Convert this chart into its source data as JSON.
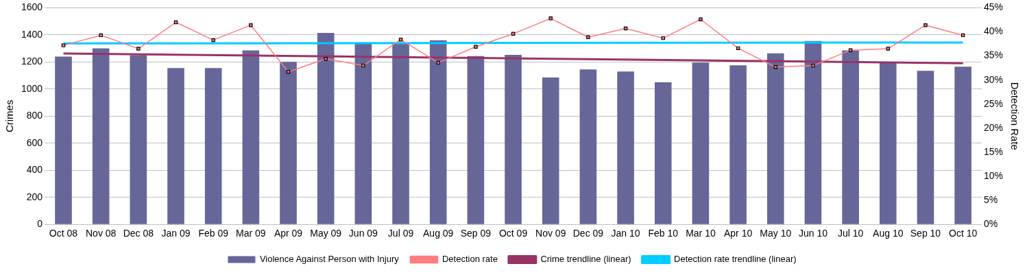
{
  "chart_data": {
    "type": "bar",
    "ylabel": "Crimes",
    "y2label": "Detection Rate",
    "categories": [
      "Oct 08",
      "Nov 08",
      "Dec 08",
      "Jan 09",
      "Feb 09",
      "Mar 09",
      "Apr 09",
      "May 09",
      "Jun 09",
      "Jul 09",
      "Aug 09",
      "Sep 09",
      "Oct 09",
      "Nov 09",
      "Dec 09",
      "Jan 10",
      "Feb 10",
      "Mar 10",
      "Apr 10",
      "May 10",
      "Jun 10",
      "Jul 10",
      "Aug 10",
      "Sep 10",
      "Oct 10"
    ],
    "series": [
      {
        "name": "Violence Against Person with Injury",
        "color": "#666699",
        "values": [
          1240,
          1300,
          1250,
          1155,
          1155,
          1285,
          1200,
          1415,
          1345,
          1333,
          1360,
          1243,
          1253,
          1085,
          1145,
          1130,
          1050,
          1195,
          1175,
          1264,
          1355,
          1285,
          1195,
          1135,
          1165
        ]
      },
      {
        "name": "Detection rate",
        "type": "line",
        "axis": "y2",
        "color": "#ff7c80",
        "marker": "square",
        "values": [
          37.2,
          39.3,
          36.5,
          42.0,
          38.3,
          41.4,
          31.7,
          34.4,
          33.0,
          38.4,
          33.6,
          36.9,
          39.6,
          42.8,
          38.9,
          40.7,
          38.7,
          42.6,
          36.6,
          32.7,
          33.0,
          36.2,
          36.5,
          41.4,
          39.3
        ]
      },
      {
        "name": "Crime trendline (linear)",
        "type": "line",
        "color": "#993366",
        "marker": "none",
        "x": [
          "Oct 08",
          "Oct 10"
        ],
        "values": [
          1263,
          1190
        ]
      },
      {
        "name": "Detection rate trendline (linear)",
        "type": "line",
        "axis": "y2",
        "color": "#00ccff",
        "marker": "none",
        "x": [
          "Oct 08",
          "Oct 10"
        ],
        "values": [
          37.6,
          37.8
        ]
      }
    ],
    "ylim": [
      0,
      1600
    ],
    "yticks": [
      0,
      200,
      400,
      600,
      800,
      1000,
      1200,
      1400,
      1600
    ],
    "y2lim": [
      0,
      45
    ],
    "y2ticks": [
      {
        "value": 0,
        "label": "0%"
      },
      {
        "value": 5,
        "label": "5%"
      },
      {
        "value": 10,
        "label": "10%"
      },
      {
        "value": 15,
        "label": "15%"
      },
      {
        "value": 20,
        "label": "20%"
      },
      {
        "value": 25,
        "label": "25%"
      },
      {
        "value": 30,
        "label": "30%"
      },
      {
        "value": 35,
        "label": "35%"
      },
      {
        "value": 40,
        "label": "40%"
      },
      {
        "value": 45,
        "label": "45%"
      }
    ],
    "grid": "y",
    "legend": "bottom"
  }
}
